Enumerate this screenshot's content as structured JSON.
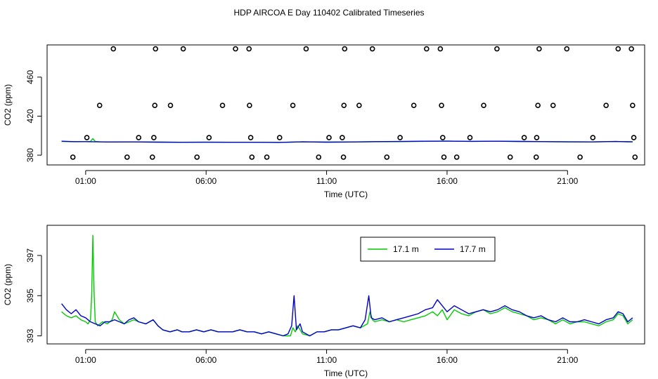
{
  "page_title": "HDP AIRCOA E  Day 110402  Calibrated Timeseries",
  "colors": {
    "green": "#00cc00",
    "blue": "#0000cc",
    "axis": "#000000"
  },
  "chart_data": [
    {
      "id": "top",
      "type": "scatter",
      "title": "",
      "xlabel": "Time (UTC)",
      "ylabel": "CO2 (ppm)",
      "xlim": [
        -0.6,
        24.2
      ],
      "ylim": [
        370,
        493
      ],
      "x_ticks": [
        1,
        6,
        11,
        16,
        21
      ],
      "x_tick_labels": [
        "01:00",
        "06:00",
        "11:00",
        "16:00",
        "21:00"
      ],
      "y_ticks": [
        380,
        420,
        460
      ],
      "y_tick_labels": [
        "380",
        "420",
        "460"
      ],
      "grid": false,
      "points": [
        {
          "x": 0.47,
          "y": 378
        },
        {
          "x": 1.05,
          "y": 398
        },
        {
          "x": 1.58,
          "y": 431
        },
        {
          "x": 2.15,
          "y": 489
        },
        {
          "x": 2.72,
          "y": 378
        },
        {
          "x": 3.2,
          "y": 398
        },
        {
          "x": 3.77,
          "y": 378
        },
        {
          "x": 3.83,
          "y": 398
        },
        {
          "x": 3.87,
          "y": 431
        },
        {
          "x": 3.9,
          "y": 489
        },
        {
          "x": 4.52,
          "y": 431
        },
        {
          "x": 5.05,
          "y": 489
        },
        {
          "x": 5.62,
          "y": 378
        },
        {
          "x": 6.12,
          "y": 398
        },
        {
          "x": 6.68,
          "y": 431
        },
        {
          "x": 7.22,
          "y": 489
        },
        {
          "x": 7.78,
          "y": 489
        },
        {
          "x": 7.8,
          "y": 431
        },
        {
          "x": 7.85,
          "y": 398
        },
        {
          "x": 7.9,
          "y": 378
        },
        {
          "x": 8.52,
          "y": 378
        },
        {
          "x": 9.05,
          "y": 398
        },
        {
          "x": 9.6,
          "y": 431
        },
        {
          "x": 10.15,
          "y": 489
        },
        {
          "x": 10.67,
          "y": 378
        },
        {
          "x": 11.1,
          "y": 398
        },
        {
          "x": 11.65,
          "y": 398
        },
        {
          "x": 11.7,
          "y": 378
        },
        {
          "x": 11.72,
          "y": 431
        },
        {
          "x": 11.75,
          "y": 489
        },
        {
          "x": 12.35,
          "y": 431
        },
        {
          "x": 12.9,
          "y": 489
        },
        {
          "x": 13.5,
          "y": 378
        },
        {
          "x": 14.05,
          "y": 398
        },
        {
          "x": 14.62,
          "y": 431
        },
        {
          "x": 15.15,
          "y": 489
        },
        {
          "x": 15.72,
          "y": 489
        },
        {
          "x": 15.77,
          "y": 431
        },
        {
          "x": 15.82,
          "y": 398
        },
        {
          "x": 15.87,
          "y": 378
        },
        {
          "x": 16.4,
          "y": 378
        },
        {
          "x": 16.95,
          "y": 398
        },
        {
          "x": 17.52,
          "y": 431
        },
        {
          "x": 18.07,
          "y": 489
        },
        {
          "x": 18.62,
          "y": 378
        },
        {
          "x": 19.2,
          "y": 398
        },
        {
          "x": 19.7,
          "y": 378
        },
        {
          "x": 19.72,
          "y": 398
        },
        {
          "x": 19.77,
          "y": 431
        },
        {
          "x": 19.82,
          "y": 489
        },
        {
          "x": 20.4,
          "y": 431
        },
        {
          "x": 20.97,
          "y": 489
        },
        {
          "x": 21.52,
          "y": 378
        },
        {
          "x": 22.05,
          "y": 398
        },
        {
          "x": 22.6,
          "y": 431
        },
        {
          "x": 23.1,
          "y": 489
        },
        {
          "x": 23.65,
          "y": 489
        },
        {
          "x": 23.7,
          "y": 431
        },
        {
          "x": 23.75,
          "y": 398
        },
        {
          "x": 23.8,
          "y": 378
        }
      ],
      "series": [
        {
          "name": "17.1 m",
          "color": "#00cc00",
          "x": [
            0,
            0.5,
            1,
            1.2,
            1.3,
            1.4,
            1.6,
            2,
            3,
            4,
            5,
            6,
            7,
            8,
            9,
            10,
            11,
            12,
            13,
            14,
            15,
            16,
            17,
            18,
            19,
            20,
            21,
            22,
            23,
            23.7
          ],
          "y": [
            394,
            393.8,
            393.9,
            394,
            397,
            394,
            393.7,
            393.5,
            393.6,
            393.4,
            393.2,
            393.3,
            393.2,
            393.2,
            393.1,
            393.7,
            393.4,
            393.5,
            393.8,
            393.9,
            394.2,
            394.4,
            394.2,
            394.3,
            394.1,
            393.9,
            393.7,
            393.6,
            394,
            393.7
          ]
        },
        {
          "name": "17.7 m",
          "color": "#0000cc",
          "x": [
            0,
            0.5,
            1,
            1.5,
            2,
            3,
            4,
            5,
            6,
            7,
            8,
            9,
            10,
            11,
            12,
            13,
            14,
            15,
            16,
            17,
            18,
            19,
            20,
            21,
            22,
            23,
            23.7
          ],
          "y": [
            394.3,
            393.9,
            393.9,
            393.7,
            393.5,
            393.6,
            393.4,
            393.2,
            393.3,
            393.2,
            393.2,
            393.1,
            393.7,
            393.4,
            393.5,
            393.9,
            394,
            394.3,
            394.4,
            394.2,
            394.3,
            394.1,
            393.9,
            393.7,
            393.6,
            394,
            393.7
          ]
        }
      ]
    },
    {
      "id": "bottom",
      "type": "line",
      "title": "",
      "xlabel": "Time (UTC)",
      "ylabel": "CO2 (ppm)",
      "xlim": [
        -0.6,
        24.2
      ],
      "ylim": [
        392.6,
        398.5
      ],
      "x_ticks": [
        1,
        6,
        11,
        16,
        21
      ],
      "x_tick_labels": [
        "01:00",
        "06:00",
        "11:00",
        "16:00",
        "21:00"
      ],
      "y_ticks": [
        393,
        395,
        397
      ],
      "y_tick_labels": [
        "393",
        "395",
        "397"
      ],
      "grid": false,
      "legend_position": "top-right",
      "series": [
        {
          "name": "17.1 m",
          "color": "#00cc00",
          "x": [
            0,
            0.2,
            0.4,
            0.6,
            0.8,
            1.0,
            1.1,
            1.2,
            1.25,
            1.3,
            1.35,
            1.4,
            1.5,
            1.7,
            1.9,
            2.1,
            2.2,
            2.4,
            2.6,
            2.8,
            3.0,
            3.2,
            3.5,
            3.8,
            4.0,
            4.2,
            4.5,
            4.8,
            5.0,
            5.3,
            5.6,
            5.9,
            6.2,
            6.5,
            6.8,
            7.1,
            7.4,
            7.7,
            8.0,
            8.3,
            8.6,
            8.9,
            9.2,
            9.5,
            9.6,
            9.7,
            9.8,
            10.0,
            10.3,
            10.6,
            10.9,
            11.2,
            11.5,
            11.8,
            12.1,
            12.4,
            12.7,
            12.8,
            12.9,
            13.0,
            13.3,
            13.6,
            13.9,
            14.2,
            14.5,
            14.8,
            15.1,
            15.4,
            15.6,
            15.8,
            16.0,
            16.3,
            16.6,
            16.9,
            17.2,
            17.5,
            17.8,
            18.1,
            18.4,
            18.7,
            19.0,
            19.3,
            19.6,
            19.9,
            20.2,
            20.5,
            20.8,
            21.1,
            21.4,
            21.7,
            22.0,
            22.3,
            22.6,
            22.9,
            23.1,
            23.3,
            23.5,
            23.7
          ],
          "y": [
            394.2,
            394.0,
            393.9,
            394.0,
            393.8,
            393.7,
            393.6,
            393.8,
            395.0,
            398.0,
            395.2,
            393.7,
            393.5,
            393.7,
            393.6,
            393.8,
            394.2,
            393.8,
            393.6,
            393.7,
            393.8,
            393.7,
            393.6,
            393.8,
            393.5,
            393.3,
            393.2,
            393.3,
            393.2,
            393.2,
            393.3,
            393.2,
            393.3,
            393.2,
            393.2,
            393.2,
            393.3,
            393.2,
            393.2,
            393.1,
            393.2,
            393.1,
            393.0,
            393.0,
            393.4,
            393.2,
            393.5,
            393.1,
            393.0,
            393.2,
            393.2,
            393.3,
            393.3,
            393.4,
            393.5,
            393.4,
            393.6,
            394.2,
            393.8,
            393.7,
            393.8,
            393.7,
            393.8,
            393.7,
            393.8,
            393.9,
            394.0,
            394.2,
            394.0,
            394.3,
            393.8,
            394.3,
            394.1,
            394.0,
            394.2,
            394.3,
            394.1,
            394.2,
            394.4,
            394.2,
            394.1,
            394.0,
            393.8,
            393.9,
            393.8,
            393.6,
            393.8,
            393.6,
            393.7,
            393.7,
            393.6,
            393.5,
            393.7,
            393.8,
            394.1,
            394.0,
            393.6,
            393.8
          ]
        },
        {
          "name": "17.7 m",
          "color": "#0000cc",
          "x": [
            0,
            0.2,
            0.4,
            0.6,
            0.8,
            1.0,
            1.2,
            1.4,
            1.6,
            1.8,
            2.0,
            2.2,
            2.4,
            2.6,
            2.8,
            3.0,
            3.2,
            3.5,
            3.8,
            4.0,
            4.2,
            4.5,
            4.8,
            5.0,
            5.3,
            5.6,
            5.9,
            6.2,
            6.5,
            6.8,
            7.1,
            7.4,
            7.7,
            8.0,
            8.3,
            8.6,
            8.9,
            9.2,
            9.4,
            9.55,
            9.65,
            9.75,
            9.9,
            10.0,
            10.3,
            10.6,
            10.9,
            11.2,
            11.5,
            11.8,
            12.1,
            12.4,
            12.6,
            12.75,
            12.85,
            13.0,
            13.3,
            13.6,
            13.9,
            14.2,
            14.5,
            14.8,
            15.1,
            15.4,
            15.6,
            15.8,
            16.0,
            16.3,
            16.6,
            16.9,
            17.2,
            17.5,
            17.8,
            18.1,
            18.4,
            18.7,
            19.0,
            19.3,
            19.6,
            19.9,
            20.2,
            20.5,
            20.8,
            21.1,
            21.4,
            21.7,
            22.0,
            22.3,
            22.6,
            22.9,
            23.1,
            23.3,
            23.5,
            23.7
          ],
          "y": [
            394.6,
            394.3,
            394.1,
            394.3,
            394.0,
            393.9,
            393.7,
            393.6,
            393.5,
            393.7,
            393.7,
            393.8,
            393.7,
            393.6,
            393.8,
            393.9,
            393.7,
            393.6,
            393.8,
            393.5,
            393.3,
            393.2,
            393.3,
            393.2,
            393.2,
            393.3,
            393.2,
            393.3,
            393.2,
            393.2,
            393.2,
            393.3,
            393.2,
            393.2,
            393.1,
            393.2,
            393.1,
            393.0,
            393.1,
            393.5,
            395.0,
            393.3,
            393.6,
            393.2,
            393.0,
            393.2,
            393.2,
            393.3,
            393.3,
            393.4,
            393.5,
            393.4,
            393.8,
            395.0,
            393.9,
            393.8,
            393.9,
            393.7,
            393.8,
            393.9,
            394.0,
            394.1,
            394.3,
            394.4,
            394.8,
            394.5,
            394.2,
            394.5,
            394.3,
            394.1,
            394.2,
            394.3,
            394.2,
            394.3,
            394.5,
            394.3,
            394.2,
            394.0,
            393.9,
            394.0,
            393.8,
            393.7,
            393.9,
            393.7,
            393.7,
            393.8,
            393.7,
            393.6,
            393.8,
            393.9,
            394.2,
            394.1,
            393.7,
            393.9
          ]
        }
      ]
    }
  ]
}
